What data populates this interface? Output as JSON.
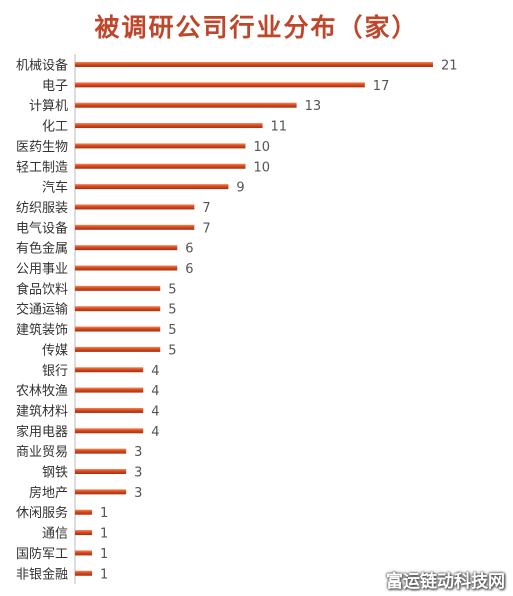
{
  "chart_data": {
    "type": "bar",
    "orientation": "horizontal",
    "title": "被调研公司行业分布（家）",
    "categories": [
      "机械设备",
      "电子",
      "计算机",
      "化工",
      "医药生物",
      "轻工制造",
      "汽车",
      "纺织服装",
      "电气设备",
      "有色金属",
      "公用事业",
      "食品饮料",
      "交通运输",
      "建筑装饰",
      "传媒",
      "银行",
      "农林牧渔",
      "建筑材料",
      "家用电器",
      "商业贸易",
      "钢铁",
      "房地产",
      "休闲服务",
      "通信",
      "国防军工",
      "非银金融"
    ],
    "values": [
      21,
      17,
      13,
      11,
      10,
      10,
      9,
      7,
      7,
      6,
      6,
      5,
      5,
      5,
      5,
      4,
      4,
      4,
      4,
      3,
      3,
      3,
      1,
      1,
      1,
      1
    ],
    "xlim": [
      0,
      21
    ],
    "grid": false,
    "legend": "none",
    "bar_color": "#d9481c",
    "label_color": "#333333",
    "value_color": "#555555"
  },
  "watermark": "富运链动科技网"
}
